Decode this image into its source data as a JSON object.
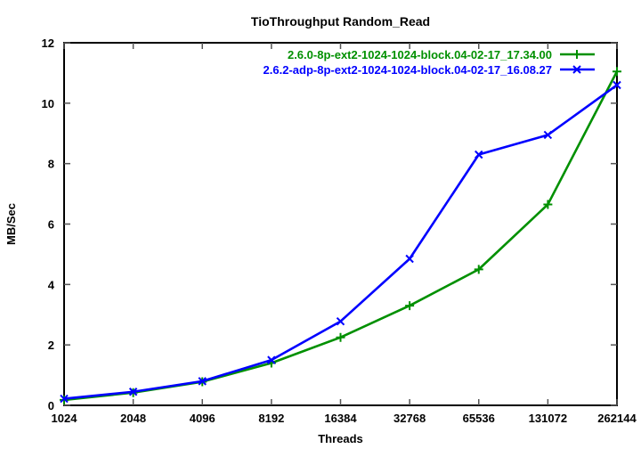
{
  "chart_data": {
    "type": "line",
    "title": "TioThroughput Random_Read",
    "xlabel": "Threads",
    "ylabel": "MB/Sec",
    "x_scale": "log2",
    "categories": [
      "1024",
      "2048",
      "4096",
      "8192",
      "16384",
      "32768",
      "65536",
      "131072",
      "262144"
    ],
    "x": [
      1024,
      2048,
      4096,
      8192,
      16384,
      32768,
      65536,
      131072,
      262144
    ],
    "ylim": [
      0,
      12
    ],
    "yticks": [
      0,
      2,
      4,
      6,
      8,
      10,
      12
    ],
    "grid": false,
    "legend_position": "top-right-inside",
    "background_color": "#ffffff",
    "border_color": "#000000",
    "tick_color": "#555555",
    "series": [
      {
        "name": "2.6.0-8p-ext2-1024-1024-block.04-02-17_17.34.00",
        "color": "#009000",
        "marker": "plus",
        "values": [
          0.18,
          0.42,
          0.78,
          1.4,
          2.25,
          3.3,
          4.5,
          6.65,
          11.05
        ]
      },
      {
        "name": "2.6.2-adp-8p-ext2-1024-1024-block.04-02-17_16.08.27",
        "color": "#0000ff",
        "marker": "cross",
        "values": [
          0.22,
          0.45,
          0.8,
          1.5,
          2.78,
          4.85,
          8.3,
          8.95,
          10.6
        ]
      }
    ]
  }
}
